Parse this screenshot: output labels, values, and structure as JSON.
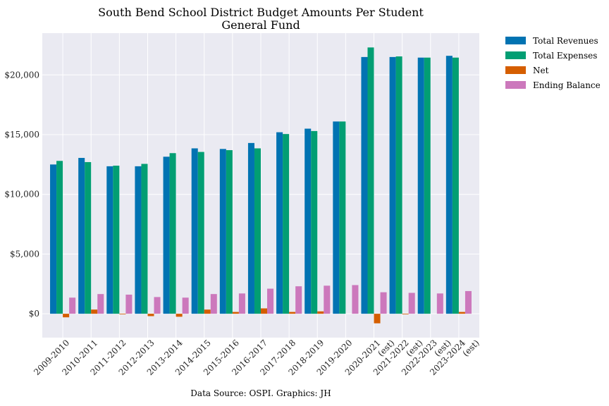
{
  "chart_data": {
    "type": "bar",
    "title": "South Bend School District Budget Amounts Per Student",
    "subtitle": "General Fund",
    "source": "Data Source: OSPI. Graphics: JH",
    "categories": [
      [
        "2009-2010"
      ],
      [
        "2010-2011"
      ],
      [
        "2011-2012"
      ],
      [
        "2012-2013"
      ],
      [
        "2013-2014"
      ],
      [
        "2014-2015"
      ],
      [
        "2015-2016"
      ],
      [
        "2016-2017"
      ],
      [
        "2017-2018"
      ],
      [
        "2018-2019"
      ],
      [
        "2019-2020"
      ],
      [
        "2020-2021",
        "(est)"
      ],
      [
        "2021-2022",
        "(est)"
      ],
      [
        "2022-2023",
        "(est)"
      ],
      [
        "2023-2024",
        "(est)"
      ]
    ],
    "series": [
      {
        "name": "Total Revenues",
        "color": "#0173b2",
        "values": [
          12500,
          13050,
          12350,
          12350,
          13150,
          13850,
          13800,
          14300,
          15200,
          15500,
          16100,
          21500,
          21500,
          21450,
          21600
        ]
      },
      {
        "name": "Total Expenses",
        "color": "#029e73",
        "values": [
          12800,
          12700,
          12400,
          12550,
          13450,
          13550,
          13700,
          13850,
          15050,
          15300,
          16100,
          22300,
          21550,
          21450,
          21450
        ]
      },
      {
        "name": "Net",
        "color": "#d55e00",
        "values": [
          -300,
          350,
          -50,
          -200,
          -250,
          350,
          150,
          450,
          150,
          200,
          0,
          -800,
          -50,
          0,
          150
        ]
      },
      {
        "name": "Ending Balance",
        "color": "#cc78bc",
        "values": [
          1350,
          1650,
          1600,
          1400,
          1350,
          1650,
          1700,
          2100,
          2300,
          2350,
          2400,
          1800,
          1750,
          1700,
          1900
        ]
      }
    ],
    "ylim": [
      -2000,
      23500
    ],
    "yticks": [
      0,
      5000,
      10000,
      15000,
      20000
    ],
    "ytick_labels": [
      "$0",
      "$5,000",
      "$10,000",
      "$15,000",
      "$20,000"
    ],
    "grid": true,
    "legend_position": "outside-top-right"
  }
}
